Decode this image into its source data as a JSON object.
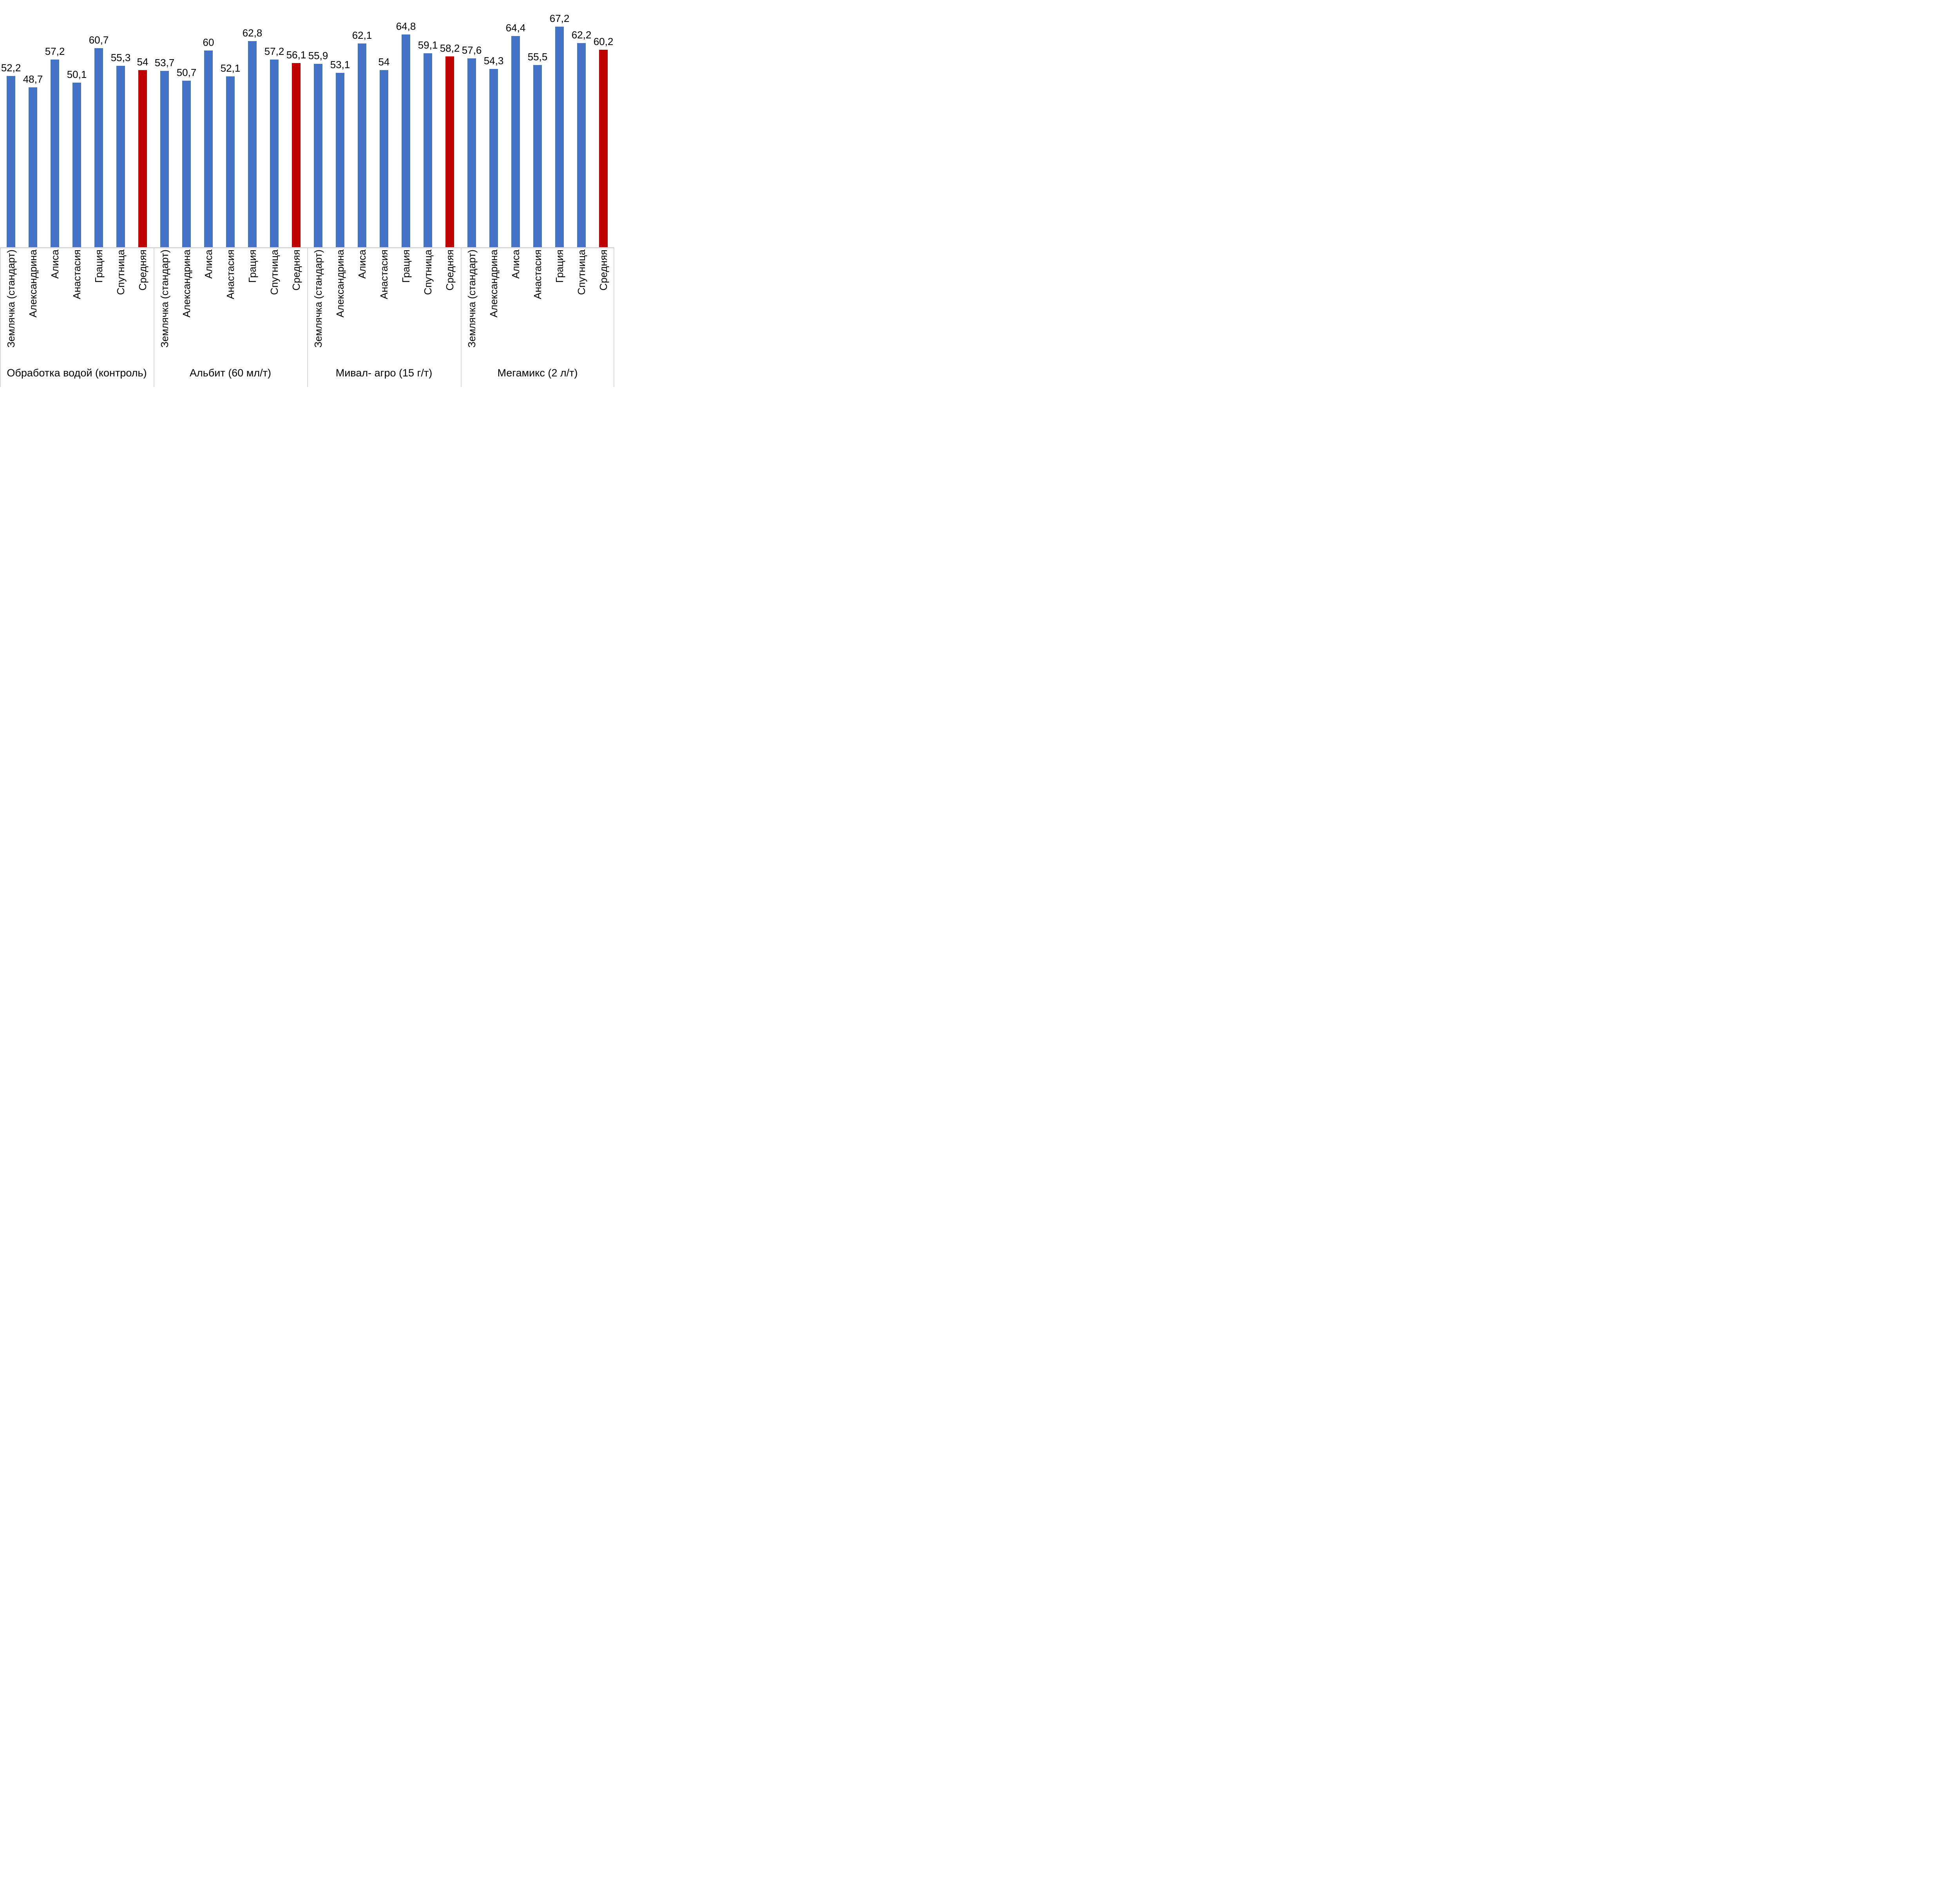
{
  "chart_data": {
    "type": "bar",
    "title": "",
    "categories": [
      "Землячка (стандарт)",
      "Александрина",
      "Алиса",
      "Анастасия",
      "Грация",
      "Спутница",
      "Средняя"
    ],
    "groups": [
      {
        "label": "Обработка водой (контроль)",
        "values": [
          52.2,
          48.7,
          57.2,
          50.1,
          60.7,
          55.3,
          54
        ],
        "labels": [
          "52,2",
          "48,7",
          "57,2",
          "50,1",
          "60,7",
          "55,3",
          "54"
        ]
      },
      {
        "label": "Альбит (60 мл/т)",
        "values": [
          53.7,
          50.7,
          60,
          52.1,
          62.8,
          57.2,
          56.1
        ],
        "labels": [
          "53,7",
          "50,7",
          "60",
          "52,1",
          "62,8",
          "57,2",
          "56,1"
        ]
      },
      {
        "label": "Мивал- агро (15 г/т)",
        "values": [
          55.9,
          53.1,
          62.1,
          54,
          64.8,
          59.1,
          58.2
        ],
        "labels": [
          "55,9",
          "53,1",
          "62,1",
          "54",
          "64,8",
          "59,1",
          "58,2"
        ]
      },
      {
        "label": "Мегамикс (2 л/т)",
        "values": [
          57.6,
          54.3,
          64.4,
          55.5,
          67.2,
          62.2,
          60.2
        ],
        "labels": [
          "57,6",
          "54,3",
          "64,4",
          "55,5",
          "67,2",
          "62,2",
          "60,2"
        ]
      }
    ],
    "average_category": "Средняя",
    "series_colors": {
      "default": "#4472C4",
      "average": "#C00000"
    },
    "axis": {
      "value_min": 0,
      "value_max_visible": 75.35,
      "gridlines": false,
      "legend": "none",
      "bar_label_position": "outside-end",
      "category_label_rotation": -90
    }
  },
  "colors": {
    "axis_line": "#D6D6D6",
    "separator_line": "#D6D6D6",
    "text": "#000000",
    "background": "#FFFFFF"
  }
}
